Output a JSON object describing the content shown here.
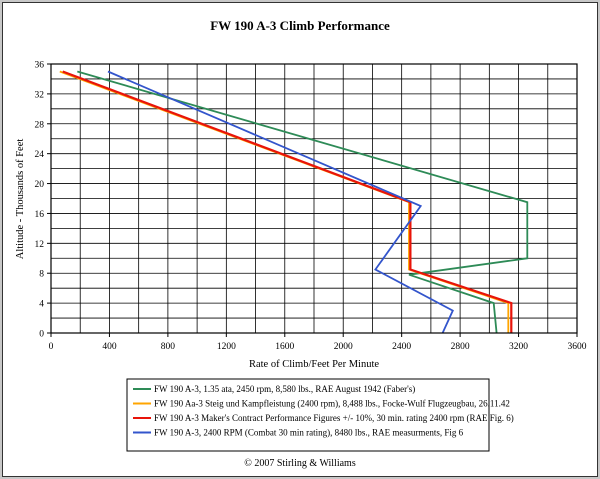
{
  "chart_data": {
    "type": "line",
    "title": "FW 190 A-3 Climb Performance",
    "xlabel": "Rate of Climb/Feet Per Minute",
    "ylabel": "Altitude - Thousands of Feet",
    "xlim": [
      0,
      3600
    ],
    "ylim": [
      0,
      36
    ],
    "x_ticks": [
      "0",
      "400",
      "800",
      "1200",
      "1600",
      "2000",
      "2400",
      "2800",
      "3200",
      "3600"
    ],
    "y_ticks": [
      "0",
      "4",
      "8",
      "12",
      "16",
      "20",
      "24",
      "28",
      "32",
      "36"
    ],
    "grid": true,
    "legend_position": "bottom",
    "footer": "© 2007 Stirling & Williams",
    "series": [
      {
        "name": "FW 190 A-3, 1.35 ata, 2450 rpm, 8,580 lbs., RAE August 1942 (Faber's)",
        "color": "#2e8b57",
        "points": [
          [
            3050,
            0
          ],
          [
            3030,
            4
          ],
          [
            2450,
            7.8
          ],
          [
            3260,
            10
          ],
          [
            3260,
            17.5
          ],
          [
            180,
            35
          ]
        ]
      },
      {
        "name": "FW 190 Aa-3 Steig und Kampfleistung (2400 rpm), 8,488 lbs., Focke-Wulf Flugzeugbau, 26.11.42",
        "color": "#ffa500",
        "points": [
          [
            3130,
            0
          ],
          [
            3130,
            4
          ],
          [
            2450,
            8.5
          ],
          [
            2450,
            17.5
          ],
          [
            60,
            35
          ]
        ]
      },
      {
        "name": "FW 190 A-3 Maker's Contract Performance Figures +/- 10%, 30 min. rating 2400 rpm (RAE Fig. 6)",
        "color": "#e8140a",
        "points": [
          [
            3150,
            0
          ],
          [
            3150,
            4
          ],
          [
            2460,
            8.5
          ],
          [
            2460,
            17.5
          ],
          [
            80,
            35
          ]
        ]
      },
      {
        "name": "FW 190 A-3, 2400 RPM (Combat 30 min rating), 8480 lbs., RAE measurments, Fig 6",
        "color": "#3355cc",
        "points": [
          [
            2680,
            0
          ],
          [
            2750,
            3
          ],
          [
            2220,
            8.5
          ],
          [
            2530,
            17
          ],
          [
            390,
            35
          ]
        ]
      }
    ]
  }
}
